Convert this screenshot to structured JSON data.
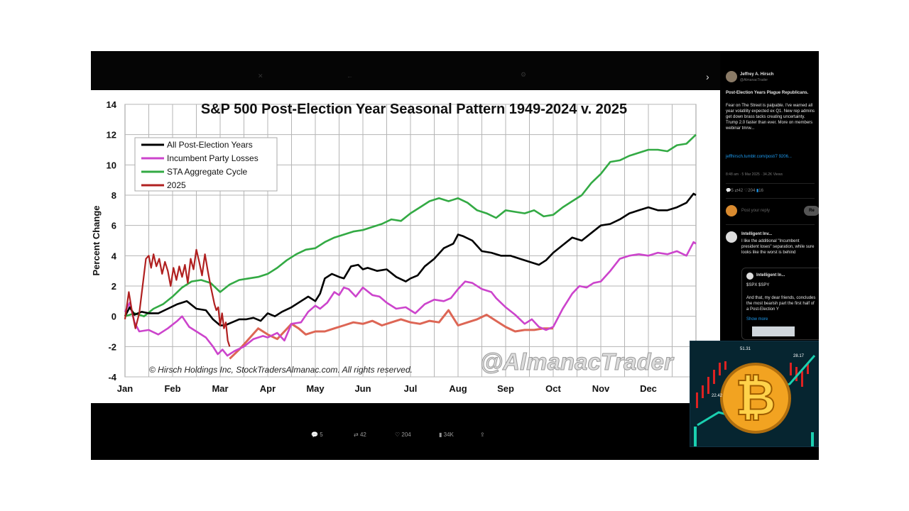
{
  "chart_data": {
    "type": "line",
    "title": "S&P 500 Post-Election Year Seasonal Pattern 1949-2024 v. 2025",
    "ylabel": "Percent Change",
    "xlabel": "",
    "ylim": [
      -4,
      14
    ],
    "yticks": [
      -4,
      -2,
      0,
      2,
      4,
      6,
      8,
      10,
      12,
      14
    ],
    "x_range": [
      0,
      12
    ],
    "months": [
      "Jan",
      "Feb",
      "Mar",
      "Apr",
      "May",
      "Jun",
      "Jul",
      "Aug",
      "Sep",
      "Oct",
      "Nov",
      "Dec"
    ],
    "grid": true,
    "legend_position": "top-left",
    "copyright": "© Hirsch Holdings Inc, StockTradersAlmanac.com. All rights reserved.",
    "watermark": "@AlmanacTrader",
    "series": [
      {
        "name": "All Post-Election Years",
        "color": "#000000",
        "x": [
          0,
          0.1,
          0.2,
          0.35,
          0.5,
          0.7,
          0.9,
          1.1,
          1.3,
          1.5,
          1.7,
          1.85,
          2.0,
          2.1,
          2.25,
          2.4,
          2.55,
          2.7,
          2.85,
          3.0,
          3.15,
          3.3,
          3.5,
          3.7,
          3.85,
          4.0,
          4.1,
          4.2,
          4.35,
          4.5,
          4.6,
          4.75,
          4.9,
          5.0,
          5.1,
          5.3,
          5.5,
          5.7,
          5.9,
          6.0,
          6.15,
          6.3,
          6.5,
          6.7,
          6.9,
          7.0,
          7.1,
          7.3,
          7.5,
          7.7,
          7.9,
          8.1,
          8.3,
          8.5,
          8.7,
          8.85,
          9.0,
          9.2,
          9.4,
          9.6,
          9.8,
          10.0,
          10.2,
          10.4,
          10.6,
          10.8,
          11.0,
          11.2,
          11.4,
          11.6,
          11.8,
          11.95,
          12.0
        ],
        "y": [
          0,
          0.6,
          0.1,
          0.3,
          0.2,
          0.2,
          0.5,
          0.8,
          1.0,
          0.5,
          0.4,
          -0.2,
          -0.6,
          -0.6,
          -0.4,
          -0.2,
          -0.2,
          -0.1,
          -0.3,
          0.2,
          0.0,
          0.3,
          0.6,
          1.0,
          1.3,
          1.0,
          1.5,
          2.5,
          2.8,
          2.6,
          2.5,
          3.3,
          3.4,
          3.1,
          3.2,
          3.0,
          3.1,
          2.6,
          2.3,
          2.5,
          2.7,
          3.3,
          3.8,
          4.5,
          4.8,
          5.4,
          5.3,
          5.0,
          4.3,
          4.2,
          4.0,
          4.0,
          3.8,
          3.6,
          3.4,
          3.7,
          4.2,
          4.7,
          5.2,
          5.0,
          5.5,
          6.0,
          6.1,
          6.4,
          6.8,
          7.0,
          7.2,
          7.0,
          7.0,
          7.2,
          7.5,
          8.1,
          8.0
        ]
      },
      {
        "name": "Incumbent Party Losses",
        "color": "#cc44cc",
        "x": [
          0,
          0.1,
          0.2,
          0.3,
          0.5,
          0.7,
          0.9,
          1.1,
          1.2,
          1.35,
          1.5,
          1.7,
          1.85,
          1.95,
          2.05,
          2.15,
          2.3,
          2.5,
          2.7,
          2.9,
          3.0,
          3.2,
          3.35,
          3.5,
          3.7,
          3.85,
          4.0,
          4.1,
          4.25,
          4.4,
          4.5,
          4.6,
          4.7,
          4.85,
          5.0,
          5.2,
          5.35,
          5.5,
          5.7,
          5.9,
          6.1,
          6.3,
          6.5,
          6.7,
          6.85,
          7.0,
          7.15,
          7.3,
          7.5,
          7.7,
          7.8,
          8.0,
          8.2,
          8.4,
          8.55,
          8.7,
          8.85,
          9.0,
          9.2,
          9.4,
          9.55,
          9.7,
          9.85,
          10.0,
          10.2,
          10.4,
          10.6,
          10.8,
          11.0,
          11.2,
          11.4,
          11.6,
          11.8,
          11.95,
          12.0
        ],
        "y": [
          0.3,
          0.9,
          -0.4,
          -1.0,
          -0.9,
          -1.2,
          -0.8,
          -0.3,
          0.0,
          -0.7,
          -1.0,
          -1.4,
          -2.0,
          -2.5,
          -2.2,
          -2.6,
          -2.3,
          -2.0,
          -1.5,
          -1.3,
          -1.4,
          -1.1,
          -1.6,
          -0.5,
          -0.4,
          0.3,
          0.7,
          0.5,
          0.9,
          1.6,
          1.4,
          1.9,
          1.8,
          1.3,
          1.9,
          1.4,
          1.3,
          0.9,
          0.5,
          0.6,
          0.2,
          0.8,
          1.1,
          1.0,
          1.2,
          1.8,
          2.3,
          2.2,
          1.8,
          1.6,
          1.2,
          0.6,
          0.1,
          -0.5,
          -0.2,
          -0.7,
          -0.9,
          -0.7,
          0.5,
          1.5,
          2.0,
          1.9,
          2.2,
          2.3,
          3.0,
          3.8,
          4.0,
          4.1,
          4.0,
          4.2,
          4.1,
          4.3,
          4.0,
          4.9,
          4.8
        ]
      },
      {
        "name": "STA Aggregate Cycle",
        "color": "#33aa44",
        "x": [
          0,
          0.2,
          0.4,
          0.6,
          0.8,
          1.0,
          1.2,
          1.4,
          1.6,
          1.8,
          2.0,
          2.2,
          2.4,
          2.6,
          2.8,
          3.0,
          3.2,
          3.4,
          3.6,
          3.8,
          4.0,
          4.2,
          4.4,
          4.6,
          4.8,
          5.0,
          5.2,
          5.4,
          5.6,
          5.8,
          6.0,
          6.2,
          6.4,
          6.6,
          6.8,
          7.0,
          7.2,
          7.4,
          7.6,
          7.8,
          8.0,
          8.2,
          8.4,
          8.6,
          8.8,
          9.0,
          9.2,
          9.4,
          9.6,
          9.8,
          10.0,
          10.2,
          10.4,
          10.6,
          10.8,
          11.0,
          11.2,
          11.4,
          11.6,
          11.8,
          12.0
        ],
        "y": [
          0,
          0.2,
          0.0,
          0.5,
          0.8,
          1.3,
          1.9,
          2.3,
          2.4,
          2.2,
          1.6,
          2.1,
          2.4,
          2.5,
          2.6,
          2.8,
          3.2,
          3.7,
          4.1,
          4.4,
          4.5,
          4.9,
          5.2,
          5.4,
          5.6,
          5.7,
          5.9,
          6.1,
          6.4,
          6.3,
          6.8,
          7.2,
          7.6,
          7.8,
          7.6,
          7.8,
          7.5,
          7.0,
          6.8,
          6.5,
          7.0,
          6.9,
          6.8,
          7.0,
          6.6,
          6.7,
          7.2,
          7.6,
          8.0,
          8.8,
          9.4,
          10.2,
          10.3,
          10.6,
          10.8,
          11.0,
          11.0,
          10.9,
          11.3,
          11.4,
          12.0
        ]
      },
      {
        "name": "2025",
        "color": "#b02020",
        "x": [
          0,
          0.08,
          0.15,
          0.22,
          0.3,
          0.37,
          0.44,
          0.5,
          0.55,
          0.6,
          0.66,
          0.72,
          0.78,
          0.84,
          0.9,
          0.96,
          1.02,
          1.08,
          1.14,
          1.2,
          1.26,
          1.32,
          1.38,
          1.44,
          1.5,
          1.56,
          1.62,
          1.68,
          1.74,
          1.8,
          1.84,
          1.88,
          1.92,
          1.96,
          2.0,
          2.04,
          2.08,
          2.12,
          2.16,
          2.2
        ],
        "y": [
          -0.2,
          1.6,
          0.3,
          -0.8,
          0.2,
          2.0,
          3.8,
          4.0,
          3.2,
          4.1,
          3.3,
          3.8,
          2.8,
          3.6,
          3.0,
          2.0,
          3.2,
          2.4,
          3.3,
          2.6,
          3.4,
          2.2,
          3.8,
          3.1,
          4.4,
          3.6,
          2.7,
          4.1,
          3.0,
          2.0,
          1.4,
          0.8,
          0.4,
          0.6,
          -0.6,
          0.2,
          -0.8,
          -0.4,
          -1.6,
          -2.0
        ]
      }
    ],
    "extra_series": {
      "color": "#dd6655",
      "x": [
        2.2,
        2.4,
        2.6,
        2.8,
        3.0,
        3.2,
        3.35,
        3.5,
        3.65,
        3.8,
        4.0,
        4.2,
        4.4,
        4.6,
        4.8,
        5.0,
        5.2,
        5.4,
        5.6,
        5.8,
        6.0,
        6.2,
        6.4,
        6.6,
        6.8,
        7.0,
        7.2,
        7.4,
        7.6,
        7.8,
        8.0,
        8.2,
        8.4,
        8.6,
        8.8,
        9.0
      ],
      "y": [
        -2.8,
        -2.2,
        -1.5,
        -0.8,
        -1.2,
        -1.5,
        -1.0,
        -0.5,
        -0.8,
        -1.2,
        -1.0,
        -1.0,
        -0.8,
        -0.6,
        -0.4,
        -0.5,
        -0.3,
        -0.6,
        -0.4,
        -0.2,
        -0.4,
        -0.5,
        -0.3,
        -0.4,
        0.4,
        -0.6,
        -0.4,
        -0.2,
        0.1,
        -0.3,
        -0.7,
        -1.0,
        -0.9,
        -0.9,
        -0.8,
        -0.8
      ]
    }
  },
  "tweet": {
    "author": "Jeffrey A. Hirsch",
    "handle": "@AlmanacTrader",
    "headline": "Post-Election Years Plague Republicans.",
    "body": "Fear on The Street is palpable. I've warned all year volatility expected ex Q1. New rep admins get down brass tacks creating uncertainty. Trump 2.0 faster than ever. More on members webinar tmrw...",
    "link": "jeffhirsch.tumblr.com/post/7 9206...",
    "meta": "8:48 am · 5 Mar 2025 · 34.2K Views",
    "stats": [
      "5",
      "42",
      "204",
      "16"
    ],
    "reply_placeholder": "Post your reply",
    "reply_button": "Re",
    "reply1_author": "Intelligent Inv...",
    "reply1_text": "I like the additional \"Incumbent president loses\" separation, while sure looks like the worst is behind",
    "quote_author": "Intelligent In...",
    "quote_ticker": "$SPX $SPY",
    "quote_text": "And that, my dear friends, concludes the most bearish part the first half of a Post-Election Y",
    "show_more": "Show more"
  },
  "bottom_actions": [
    "5",
    "42",
    "204",
    "34K",
    ""
  ],
  "thumbnail": {
    "price_1": "51.31",
    "price_2": "28.17",
    "price_3": "22.42"
  }
}
